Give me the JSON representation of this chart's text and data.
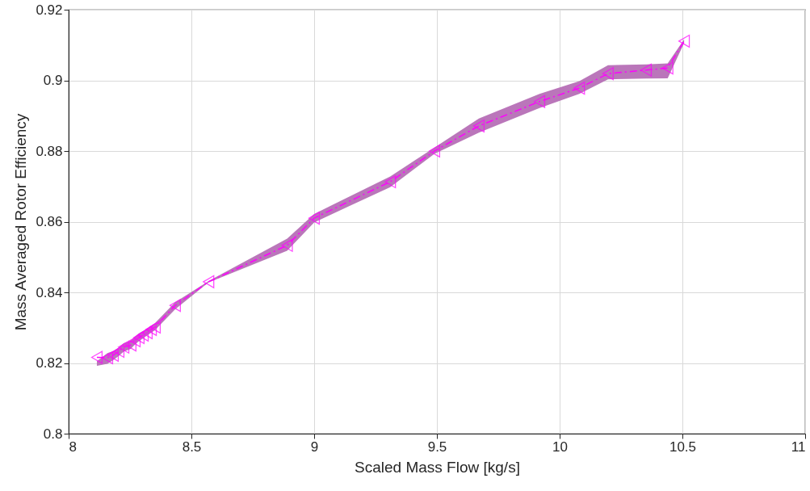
{
  "chart_data": {
    "type": "line",
    "xlabel": "Scaled Mass Flow [kg/s]",
    "ylabel": "Mass Averaged Rotor Efficiency",
    "xlim": [
      8,
      11
    ],
    "xticks": [
      8,
      8.5,
      9,
      9.5,
      10,
      10.5,
      11
    ],
    "ylim": [
      0.8,
      0.92
    ],
    "yticks": [
      0.8,
      0.82,
      0.84,
      0.86,
      0.88,
      0.9,
      0.92
    ],
    "grid": true,
    "marker": "triangle",
    "line_style": "dashdot",
    "series": [
      {
        "color": "#ff00ff",
        "x": [
          8.115,
          8.158,
          8.181,
          8.204,
          8.224,
          8.253,
          8.27,
          8.286,
          8.303,
          8.319,
          8.336,
          8.352,
          8.434,
          8.57,
          8.89,
          9.0,
          9.31,
          9.49,
          9.671,
          9.918,
          10.08,
          10.197,
          10.352,
          10.44,
          10.507
        ],
        "values": [
          0.8216,
          0.8215,
          0.8222,
          0.8233,
          0.8245,
          0.8251,
          0.8263,
          0.8272,
          0.8279,
          0.8286,
          0.8295,
          0.8302,
          0.8363,
          0.843,
          0.8533,
          0.861,
          0.8713,
          0.88,
          0.8871,
          0.894,
          0.8978,
          0.9019,
          0.9029,
          0.9035,
          0.9111
        ],
        "lower": [
          0.8192,
          0.8198,
          0.8208,
          0.822,
          0.8232,
          0.824,
          0.8252,
          0.8262,
          0.827,
          0.8278,
          0.8286,
          0.8293,
          0.8352,
          0.8428,
          0.8518,
          0.8598,
          0.8698,
          0.8792,
          0.8852,
          0.8922,
          0.8962,
          0.9003,
          0.9005,
          0.9006,
          0.9106
        ],
        "upper": [
          0.8205,
          0.8228,
          0.8234,
          0.8244,
          0.8256,
          0.8264,
          0.8275,
          0.8284,
          0.8291,
          0.8298,
          0.8306,
          0.8313,
          0.8372,
          0.8432,
          0.8552,
          0.8622,
          0.8728,
          0.881,
          0.8892,
          0.8962,
          0.8998,
          0.9043,
          0.9045,
          0.9048,
          0.9116
        ]
      }
    ]
  }
}
